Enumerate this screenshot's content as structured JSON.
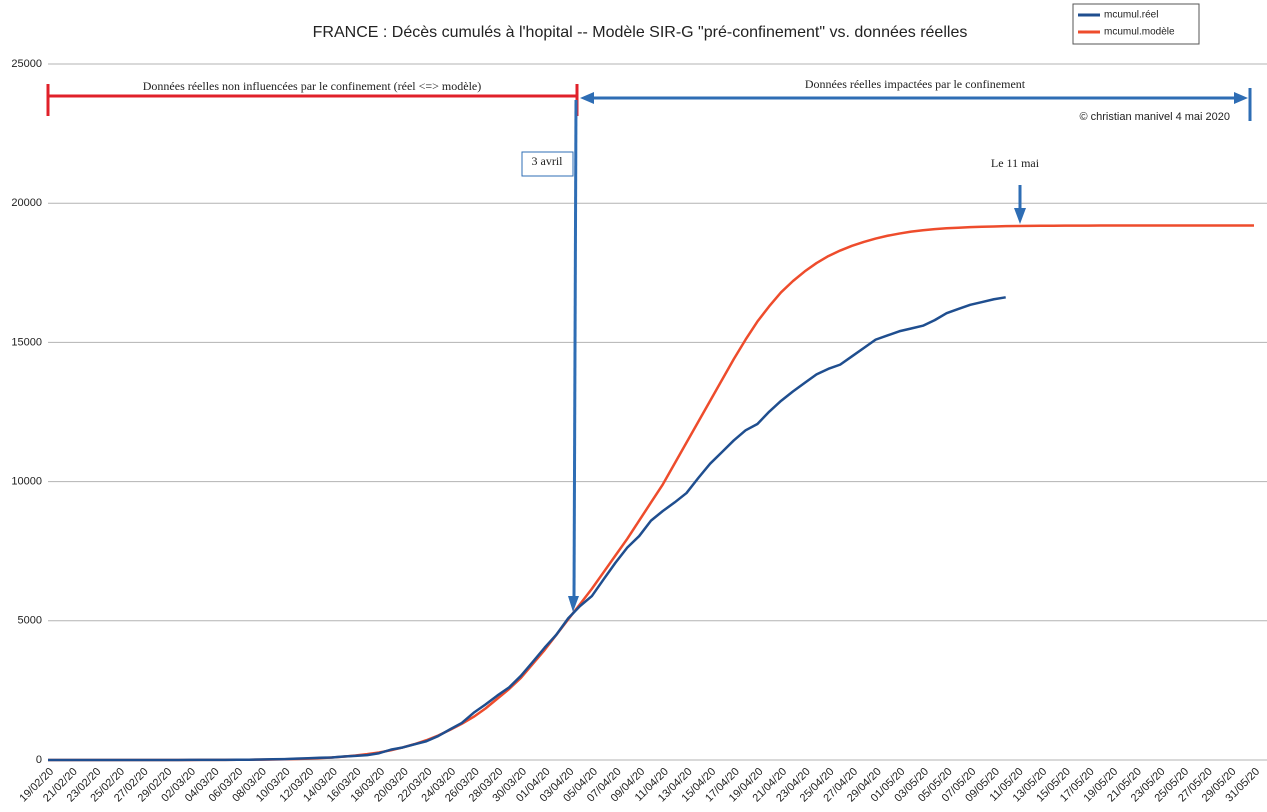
{
  "chart_data": {
    "type": "line",
    "title": "FRANCE : Décès cumulés  à l'hopital -- Modèle SIR-G \"pré-confinement\" vs. données réelles",
    "annotations": [
      "Données réelles non influencées par le confinement (réel <=> modèle)",
      "Données réelles impactées par le confinement",
      "© christian manivel 4 mai 2020",
      "3 avril",
      "Le 11 mai"
    ],
    "categories": [
      "19/02/20",
      null,
      "21/02/20",
      null,
      "23/02/20",
      null,
      "25/02/20",
      null,
      "27/02/20",
      null,
      "29/02/20",
      null,
      "02/03/20",
      null,
      "04/03/20",
      null,
      "06/03/20",
      null,
      "08/03/20",
      null,
      "10/03/20",
      null,
      "12/03/20",
      null,
      "14/03/20",
      null,
      "16/03/20",
      null,
      "18/03/20",
      null,
      "20/03/20",
      null,
      "22/03/20",
      null,
      "24/03/20",
      null,
      "26/03/20",
      null,
      "28/03/20",
      null,
      "30/03/20",
      null,
      "01/04/20",
      null,
      "03/04/20",
      null,
      "05/04/20",
      null,
      "07/04/20",
      null,
      "09/04/20",
      null,
      "11/04/20",
      null,
      "13/04/20",
      null,
      "15/04/20",
      null,
      "17/04/20",
      null,
      "19/04/20",
      null,
      "21/04/20",
      null,
      "23/04/20",
      null,
      "25/04/20",
      null,
      "27/04/20",
      null,
      "29/04/20",
      null,
      "01/05/20",
      null,
      "03/05/20",
      null,
      "05/05/20",
      null,
      "07/05/20",
      null,
      "09/05/20",
      null,
      "11/05/20",
      null,
      "13/05/20",
      null,
      "15/05/20",
      null,
      "17/05/20",
      null,
      "19/05/20",
      null,
      "21/05/20",
      null,
      "23/05/20",
      null,
      "25/05/20",
      null,
      "27/05/20",
      null,
      "29/05/20",
      null,
      "31/05/20"
    ],
    "series": [
      {
        "name": "mcumul.réel",
        "color": "#1f4e8f",
        "values": [
          0,
          0,
          0,
          0,
          0,
          0,
          1,
          1,
          2,
          2,
          2,
          2,
          3,
          4,
          4,
          6,
          9,
          11,
          19,
          25,
          33,
          48,
          61,
          79,
          91,
          127,
          148,
          175,
          244,
          372,
          450,
          562,
          674,
          860,
          1100,
          1331,
          1696,
          1995,
          2314,
          2606,
          3024,
          3523,
          4032,
          4503,
          5091,
          5532,
          5889,
          6494,
          7091,
          7632,
          8044,
          8598,
          8943,
          9252,
          9588,
          10129,
          10643,
          11060,
          11478,
          11842,
          12069,
          12513,
          12900,
          13236,
          13547,
          13852,
          14050,
          14202,
          14500,
          14800,
          15100,
          15250,
          15400,
          15500,
          15600,
          15800,
          16050,
          16200,
          16350,
          16450,
          16550,
          16620,
          null,
          null,
          null,
          null,
          null,
          null,
          null,
          null,
          null,
          null,
          null,
          null,
          null,
          null,
          null,
          null,
          null,
          null,
          null,
          null,
          null
        ]
      },
      {
        "name": "mcumul.modèle",
        "color": "#ee4c2c",
        "values": [
          0,
          0,
          0,
          0,
          0,
          0,
          0,
          0,
          0,
          0,
          1,
          1,
          2,
          3,
          4,
          5,
          7,
          10,
          14,
          20,
          27,
          37,
          50,
          68,
          90,
          120,
          160,
          210,
          270,
          350,
          450,
          570,
          710,
          880,
          1080,
          1300,
          1550,
          1850,
          2200,
          2550,
          2950,
          3450,
          3950,
          4500,
          5050,
          5600,
          6150,
          6750,
          7350,
          7950,
          8600,
          9250,
          9900,
          10650,
          11400,
          12150,
          12900,
          13650,
          14400,
          15100,
          15750,
          16300,
          16800,
          17200,
          17550,
          17850,
          18100,
          18300,
          18470,
          18610,
          18730,
          18830,
          18910,
          18980,
          19030,
          19070,
          19100,
          19120,
          19140,
          19155,
          19165,
          19175,
          19180,
          19185,
          19190,
          19190,
          19195,
          19195,
          19195,
          19200,
          19200,
          19200,
          19200,
          19200,
          19200,
          19200,
          19200,
          19200,
          19200,
          19200,
          19200,
          19200,
          19200
        ]
      }
    ],
    "ylim": [
      0,
      25000
    ],
    "yticks": [
      0,
      5000,
      10000,
      15000,
      20000,
      25000
    ],
    "grid": true,
    "legend": "top-right"
  }
}
